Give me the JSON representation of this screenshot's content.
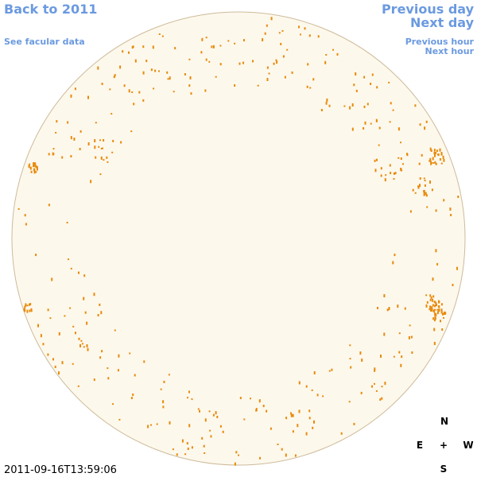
{
  "nav": {
    "back": "Back to 2011",
    "facular": "See facular data",
    "previous_day": "Previous day",
    "next_day": "Next day",
    "previous_hour": "Previous hour",
    "next_hour": "Next hour"
  },
  "compass": {
    "north": "N",
    "east": "E",
    "center": "+",
    "west": "W",
    "south": "S"
  },
  "timestamp": "2011-09-16T13:59:06"
}
